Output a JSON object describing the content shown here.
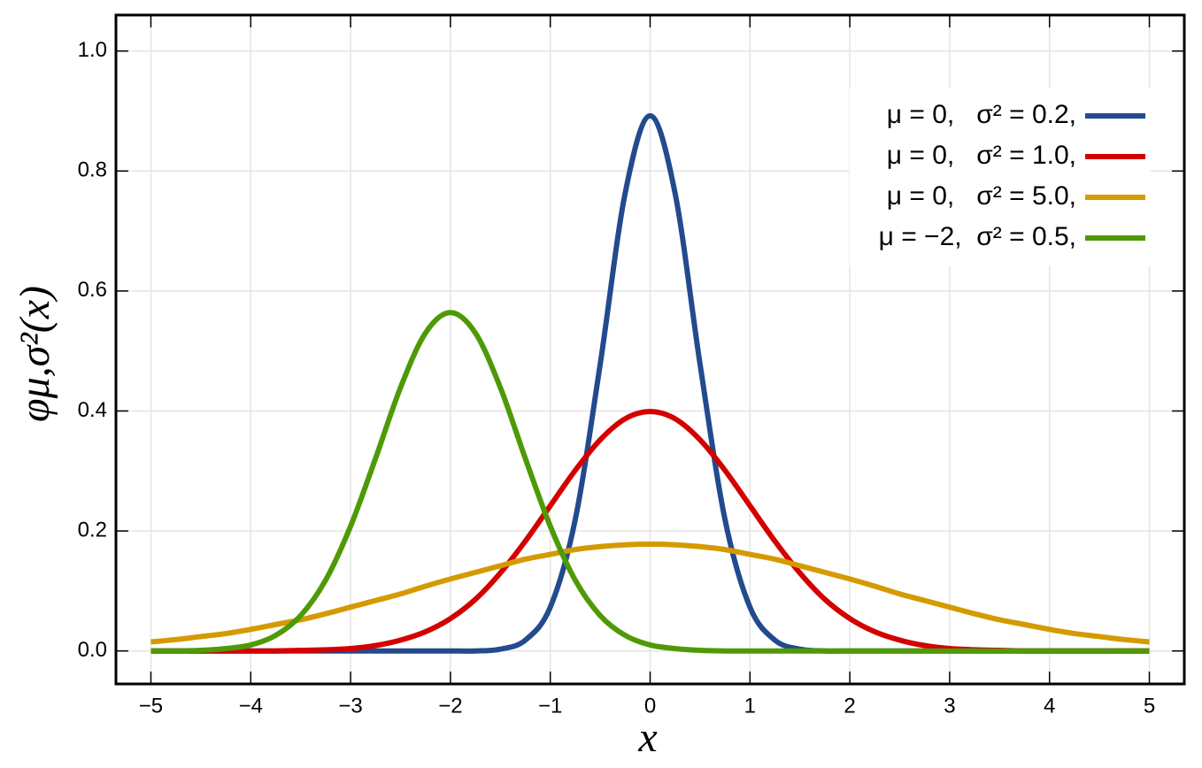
{
  "chart_data": {
    "type": "line",
    "x_label": "x",
    "y_label": "φμ,σ²(x)",
    "x": [
      -5,
      -4.75,
      -4.5,
      -4.25,
      -4,
      -3.75,
      -3.5,
      -3.25,
      -3,
      -2.75,
      -2.5,
      -2.25,
      -2,
      -1.75,
      -1.5,
      -1.25,
      -1,
      -0.75,
      -0.5,
      -0.25,
      0,
      0.25,
      0.5,
      0.75,
      1,
      1.25,
      1.5,
      1.75,
      2,
      2.25,
      2.5,
      2.75,
      3,
      3.25,
      3.5,
      3.75,
      4,
      4.25,
      4.5,
      4.75,
      5
    ],
    "series": [
      {
        "name": "μ = 0,   σ² = 0.2,",
        "color": "#224b8d",
        "values": [
          0,
          0,
          0,
          0,
          0,
          0,
          0,
          0,
          0,
          0,
          0,
          0,
          0,
          0,
          0.003,
          0.018,
          0.073,
          0.219,
          0.478,
          0.763,
          0.892,
          0.763,
          0.478,
          0.219,
          0.073,
          0.018,
          0.003,
          0,
          0,
          0,
          0,
          0,
          0,
          0,
          0,
          0,
          0,
          0,
          0,
          0,
          0
        ]
      },
      {
        "name": "μ = 0,   σ² = 1.0,",
        "color": "#d40000",
        "values": [
          0,
          0,
          0,
          0,
          0,
          0,
          0.001,
          0.002,
          0.004,
          0.009,
          0.018,
          0.032,
          0.054,
          0.086,
          0.13,
          0.183,
          0.242,
          0.301,
          0.352,
          0.387,
          0.399,
          0.387,
          0.352,
          0.301,
          0.242,
          0.183,
          0.13,
          0.086,
          0.054,
          0.032,
          0.018,
          0.009,
          0.004,
          0.002,
          0.001,
          0,
          0,
          0,
          0,
          0,
          0
        ]
      },
      {
        "name": "μ = 0,   σ² = 5.0,",
        "color": "#d49a00",
        "values": [
          0.015,
          0.019,
          0.024,
          0.029,
          0.036,
          0.044,
          0.052,
          0.062,
          0.073,
          0.084,
          0.095,
          0.108,
          0.12,
          0.131,
          0.142,
          0.153,
          0.161,
          0.169,
          0.174,
          0.177,
          0.178,
          0.177,
          0.174,
          0.169,
          0.161,
          0.153,
          0.142,
          0.131,
          0.12,
          0.108,
          0.095,
          0.084,
          0.073,
          0.062,
          0.052,
          0.044,
          0.036,
          0.029,
          0.024,
          0.019,
          0.015
        ]
      },
      {
        "name": "μ = −2,  σ² = 0.5,",
        "color": "#4e9a06",
        "values": [
          0,
          0,
          0.001,
          0.004,
          0.01,
          0.026,
          0.059,
          0.118,
          0.208,
          0.321,
          0.439,
          0.53,
          0.564,
          0.53,
          0.439,
          0.321,
          0.208,
          0.118,
          0.059,
          0.026,
          0.01,
          0.004,
          0.001,
          0,
          0,
          0,
          0,
          0,
          0,
          0,
          0,
          0,
          0,
          0,
          0,
          0,
          0,
          0,
          0,
          0,
          0
        ]
      }
    ],
    "xlim": [
      -5.35,
      5.35
    ],
    "ylim": [
      -0.055,
      1.06
    ],
    "xticks": [
      {
        "value": -5,
        "label": "−5"
      },
      {
        "value": -4,
        "label": "−4"
      },
      {
        "value": -3,
        "label": "−3"
      },
      {
        "value": -2,
        "label": "−2"
      },
      {
        "value": -1,
        "label": "−1"
      },
      0,
      1,
      2,
      3,
      4,
      5
    ],
    "yticks": [
      {
        "value": 0,
        "label": "0.0"
      },
      0.2,
      0.4,
      0.6,
      0.8,
      {
        "value": 1,
        "label": "1.0"
      }
    ],
    "grid": true,
    "legend": "upper right"
  }
}
